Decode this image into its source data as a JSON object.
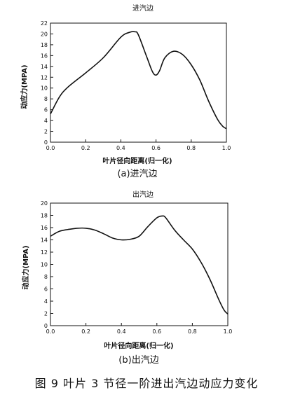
{
  "caption": "图 9 叶片 3 节径一阶进出汽边动应力变化",
  "chart_data": [
    {
      "type": "line",
      "title": "进汽边",
      "subtitle": "(a)进汽边",
      "xlabel": "叶片径向距离(归一化)",
      "ylabel": "动应力(MPA)",
      "xlim": [
        0.0,
        1.0
      ],
      "ylim": [
        0,
        22
      ],
      "xticks": [
        "0.0",
        "0.2",
        "0.4",
        "0.6",
        "0.8",
        "1.0"
      ],
      "yticks": [
        "0",
        "2",
        "4",
        "6",
        "8",
        "10",
        "12",
        "14",
        "16",
        "18",
        "20",
        "22"
      ],
      "x": [
        0.0,
        0.05,
        0.1,
        0.2,
        0.3,
        0.4,
        0.45,
        0.48,
        0.5,
        0.55,
        0.58,
        0.6,
        0.62,
        0.65,
        0.7,
        0.75,
        0.8,
        0.85,
        0.9,
        0.95,
        0.98,
        1.0
      ],
      "y": [
        5.2,
        8.3,
        10.2,
        12.8,
        15.6,
        19.4,
        20.3,
        20.4,
        19.8,
        15.5,
        13.0,
        12.4,
        13.2,
        15.6,
        16.8,
        16.2,
        14.3,
        11.4,
        7.5,
        4.2,
        2.9,
        2.5
      ]
    },
    {
      "type": "line",
      "title": "出汽边",
      "subtitle": "(b)出汽边",
      "xlabel": "叶片径向距离(归一化)",
      "ylabel": "动应力(MPA)",
      "xlim": [
        0.0,
        1.0
      ],
      "ylim": [
        0,
        20
      ],
      "xticks": [
        "0.0",
        "0.2",
        "0.4",
        "0.6",
        "0.8",
        "1.0"
      ],
      "yticks": [
        "0",
        "2",
        "4",
        "6",
        "8",
        "10",
        "12",
        "14",
        "16",
        "18",
        "20"
      ],
      "x": [
        0.0,
        0.05,
        0.1,
        0.15,
        0.2,
        0.25,
        0.3,
        0.35,
        0.4,
        0.45,
        0.5,
        0.55,
        0.6,
        0.63,
        0.65,
        0.7,
        0.75,
        0.8,
        0.85,
        0.9,
        0.95,
        0.98,
        1.0
      ],
      "y": [
        14.6,
        15.4,
        15.7,
        15.9,
        15.9,
        15.6,
        15.0,
        14.3,
        14.0,
        14.1,
        14.6,
        16.2,
        17.6,
        17.9,
        17.6,
        15.6,
        14.0,
        12.5,
        10.3,
        7.5,
        4.2,
        2.5,
        1.9
      ]
    }
  ]
}
